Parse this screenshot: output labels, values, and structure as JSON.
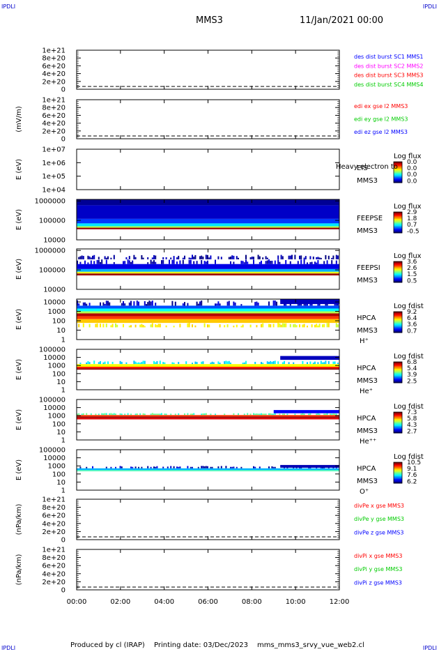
{
  "corner_tag": "IPDLI",
  "header": {
    "spacecraft": "MMS3",
    "date": "11/Jan/2021 00:00"
  },
  "footer": {
    "produced_by": "Produced by cl (IRAP)",
    "printing_date": "Printing date: 03/Dec/2023",
    "script_name": "mms_mms3_srvy_vue_web2.cl"
  },
  "colors": {
    "red": "#ff0000",
    "green": "#00cc00",
    "blue": "#0000ff",
    "magenta": "#ff00ff",
    "dashed": "#000000",
    "frame": "#000000"
  },
  "chart_data": [
    {
      "type": "line",
      "ylabel": "",
      "ytick_labels": [
        "1e+21",
        "8e+20",
        "6e+20",
        "4e+20",
        "2e+20",
        "0"
      ],
      "ytick_values": [
        1e+21,
        8e+20,
        6e+20,
        4e+20,
        2e+20,
        0
      ],
      "ylim": [
        0,
        1e+21
      ],
      "zero_dashed": true,
      "series": [
        {
          "name": "des dist burst SC1 MMS1",
          "color": "#0000ff",
          "values": []
        },
        {
          "name": "des dist burst SC2 MMS2",
          "color": "#ff00ff",
          "values": []
        },
        {
          "name": "des dist burst SC3 MMS3",
          "color": "#ff0000",
          "values": []
        },
        {
          "name": "des dist burst SC4 MMS4",
          "color": "#00cc00",
          "values": []
        }
      ]
    },
    {
      "type": "line",
      "ylabel": "(mV/m)",
      "ytick_labels": [
        "1e+21",
        "8e+20",
        "6e+20",
        "4e+20",
        "2e+20",
        "0"
      ],
      "ytick_values": [
        1e+21,
        8e+20,
        6e+20,
        4e+20,
        2e+20,
        0
      ],
      "ylim": [
        0,
        1e+21
      ],
      "zero_dashed": true,
      "series": [
        {
          "name": "edi ex gse l2 MMS3",
          "color": "#ff0000",
          "values": []
        },
        {
          "name": "edi ey gse l2 MMS3",
          "color": "#00cc00",
          "values": []
        },
        {
          "name": "edi ez gse l2 MMS3",
          "color": "#0000ff",
          "values": []
        }
      ]
    },
    {
      "type": "heatmap",
      "ylabel": "E (eV)",
      "ytick_labels": [
        "1e+07",
        "1e+06",
        "1e+05",
        "1e+04"
      ],
      "ytick_values": [
        10000000.0,
        1000000.0,
        100000.0,
        10000.0
      ],
      "ylim": [
        10000.0,
        10000000.0
      ],
      "yscale": "log",
      "instrument": [
        "EIS",
        "MMS3"
      ],
      "overlay_text": "Heavy electron to",
      "colorbar_title": "Log flux",
      "colorbar_labels": [
        "0.0",
        "0.0",
        "0.0",
        "0.0"
      ],
      "bands": []
    },
    {
      "type": "heatmap",
      "ylabel": "E (eV)",
      "ytick_labels": [
        "1000000",
        "100000",
        "10000"
      ],
      "ytick_values": [
        1000000.0,
        100000.0,
        10000.0
      ],
      "ylim": [
        10000.0,
        1200000.0
      ],
      "yscale": "log",
      "instrument": [
        "FEEPSE",
        "MMS3"
      ],
      "colorbar_title": "Log flux",
      "colorbar_labels": [
        "2.9",
        "1.8",
        "0.7",
        "-0.5"
      ],
      "bands": [
        {
          "y": [
            600000.0,
            1200000.0
          ],
          "level": 0.02,
          "x": [
            0,
            12
          ]
        },
        {
          "y": [
            120000.0,
            600000.0
          ],
          "level": 0.07,
          "x": [
            0,
            12
          ]
        },
        {
          "y": [
            70000.0,
            120000.0
          ],
          "level": 0.18,
          "x": [
            0,
            12
          ]
        },
        {
          "y": [
            50000.0,
            70000.0
          ],
          "level": 0.35,
          "x": [
            0,
            12
          ]
        },
        {
          "y": [
            42000.0,
            50000.0
          ],
          "level": 0.55,
          "x": [
            0,
            12
          ]
        },
        {
          "y": [
            35000.0,
            42000.0
          ],
          "level": 0.98,
          "x": [
            0,
            12
          ]
        }
      ]
    },
    {
      "type": "heatmap",
      "ylabel": "E (eV)",
      "ytick_labels": [
        "1000000",
        "100000",
        "10000"
      ],
      "ytick_values": [
        1000000.0,
        100000.0,
        10000.0
      ],
      "ylim": [
        10000.0,
        1200000.0
      ],
      "yscale": "log",
      "instrument": [
        "FEEPSI",
        "MMS3"
      ],
      "colorbar_title": "Log flux",
      "colorbar_labels": [
        "3.6",
        "2.6",
        "1.5",
        "0.5"
      ],
      "bands": [
        {
          "y": [
            350000.0,
            600000.0
          ],
          "level": 0.03,
          "x": [
            0,
            12
          ],
          "sparse": true
        },
        {
          "y": [
            200000.0,
            350000.0
          ],
          "level": 0.06,
          "x": [
            0,
            12
          ],
          "sparse": true
        },
        {
          "y": [
            110000.0,
            200000.0
          ],
          "level": 0.1,
          "x": [
            0,
            12
          ]
        },
        {
          "y": [
            80000.0,
            110000.0
          ],
          "level": 0.3,
          "x": [
            0,
            12
          ]
        },
        {
          "y": [
            65000.0,
            80000.0
          ],
          "level": 0.6,
          "x": [
            0,
            12
          ]
        },
        {
          "y": [
            52000.0,
            65000.0
          ],
          "level": 0.97,
          "x": [
            0,
            12
          ]
        }
      ]
    },
    {
      "type": "heatmap",
      "ylabel": "E (eV)",
      "ytick_labels": [
        "10000",
        "1000",
        "100",
        "10",
        "1"
      ],
      "ytick_values": [
        10000.0,
        1000.0,
        100.0,
        10.0,
        1
      ],
      "ylim": [
        1,
        20000.0
      ],
      "yscale": "log",
      "instrument": [
        "HPCA",
        "MMS3"
      ],
      "species": "H⁺",
      "colorbar_title": "Log fdist",
      "colorbar_labels": [
        "9.2",
        "6.4",
        "3.6",
        "0.7"
      ],
      "bands": [
        {
          "y": [
            4000,
            15000
          ],
          "level": 0.05,
          "x": [
            0,
            12
          ],
          "sparse": true
        },
        {
          "y": [
            2000,
            4000
          ],
          "level": 0.2,
          "x": [
            0,
            12
          ]
        },
        {
          "y": [
            1000,
            2000
          ],
          "level": 0.38,
          "x": [
            0,
            12
          ]
        },
        {
          "y": [
            600,
            1000
          ],
          "level": 0.55,
          "x": [
            0,
            12
          ]
        },
        {
          "y": [
            300,
            600
          ],
          "level": 0.95,
          "x": [
            0,
            12
          ]
        },
        {
          "y": [
            150,
            300
          ],
          "level": 0.82,
          "x": [
            0,
            12
          ]
        },
        {
          "y": [
            60,
            150
          ],
          "level": 0.68,
          "x": [
            0,
            12
          ]
        },
        {
          "y": [
            20,
            60
          ],
          "level": 0.62,
          "x": [
            0,
            12
          ],
          "sparse": true
        },
        {
          "y": [
            6000,
            20000
          ],
          "level": 0.06,
          "x": [
            9.3,
            12
          ]
        }
      ]
    },
    {
      "type": "heatmap",
      "ylabel": "E (eV)",
      "ytick_labels": [
        "100000",
        "10000",
        "1000",
        "100",
        "10",
        "1"
      ],
      "ytick_values": [
        100000.0,
        10000.0,
        1000.0,
        100.0,
        10.0,
        1
      ],
      "ylim": [
        1,
        100000.0
      ],
      "yscale": "log",
      "instrument": [
        "HPCA",
        "MMS3"
      ],
      "species": "He⁺",
      "colorbar_title": "Log fdist",
      "colorbar_labels": [
        "6.8",
        "5.4",
        "3.9",
        "2.5"
      ],
      "bands": [
        {
          "y": [
            1500,
            4000
          ],
          "level": 0.35,
          "x": [
            0,
            12
          ],
          "sparse": true
        },
        {
          "y": [
            700,
            1500
          ],
          "level": 0.62,
          "x": [
            0,
            12
          ]
        },
        {
          "y": [
            450,
            700
          ],
          "level": 0.85,
          "x": [
            0,
            12
          ]
        },
        {
          "y": [
            300,
            450
          ],
          "level": 0.98,
          "x": [
            0,
            12
          ]
        },
        {
          "y": [
            5000,
            15000
          ],
          "level": 0.06,
          "x": [
            9.3,
            12
          ]
        }
      ]
    },
    {
      "type": "heatmap",
      "ylabel": "E (eV)",
      "ytick_labels": [
        "100000",
        "10000",
        "1000",
        "100",
        "10",
        "1"
      ],
      "ytick_values": [
        100000.0,
        10000.0,
        1000.0,
        100.0,
        10.0,
        1
      ],
      "ylim": [
        1,
        100000.0
      ],
      "yscale": "log",
      "instrument": [
        "HPCA",
        "MMS3"
      ],
      "species": "He⁺⁺",
      "colorbar_title": "Log fdist",
      "colorbar_labels": [
        "7.3",
        "5.8",
        "4.3",
        "2.7"
      ],
      "bands": [
        {
          "y": [
            1200,
            2200
          ],
          "level": 0.45,
          "x": [
            0,
            12
          ],
          "sparse": true
        },
        {
          "y": [
            800,
            1200
          ],
          "level": 0.82,
          "x": [
            0,
            12
          ]
        },
        {
          "y": [
            500,
            800
          ],
          "level": 0.96,
          "x": [
            0,
            12
          ]
        },
        {
          "y": [
            350,
            500
          ],
          "level": 0.9,
          "x": [
            0,
            12
          ]
        },
        {
          "y": [
            2000,
            5000
          ],
          "level": 0.12,
          "x": [
            9.0,
            12
          ]
        }
      ]
    },
    {
      "type": "heatmap",
      "ylabel": "E (eV)",
      "ytick_labels": [
        "100000",
        "10000",
        "1000",
        "100",
        "10",
        "1"
      ],
      "ytick_values": [
        100000.0,
        10000.0,
        1000.0,
        100.0,
        10.0,
        1
      ],
      "ylim": [
        1,
        100000.0
      ],
      "yscale": "log",
      "instrument": [
        "HPCA",
        "MMS3"
      ],
      "species": "O⁺",
      "colorbar_title": "Log fdist",
      "colorbar_labels": [
        "10.5",
        "9.1",
        "7.6",
        "6.2"
      ],
      "bands": [
        {
          "y": [
            500,
            1000
          ],
          "level": 0.05,
          "x": [
            0,
            12
          ],
          "sparse": true
        },
        {
          "y": [
            300,
            500
          ],
          "level": 0.3,
          "x": [
            0,
            12
          ]
        },
        {
          "y": [
            220,
            300
          ],
          "level": 0.45,
          "x": [
            0,
            12
          ]
        },
        {
          "y": [
            600,
            1300
          ],
          "level": 0.05,
          "x": [
            9.3,
            12
          ]
        }
      ]
    },
    {
      "type": "line",
      "ylabel": "(nPa/km)",
      "ytick_labels": [
        "1e+21",
        "8e+20",
        "6e+20",
        "4e+20",
        "2e+20",
        "0"
      ],
      "ytick_values": [
        1e+21,
        8e+20,
        6e+20,
        4e+20,
        2e+20,
        0
      ],
      "ylim": [
        0,
        1e+21
      ],
      "zero_dashed": true,
      "series": [
        {
          "name": "divPe x gse MMS3",
          "color": "#ff0000",
          "values": []
        },
        {
          "name": "divPe y gse MMS3",
          "color": "#00cc00",
          "values": []
        },
        {
          "name": "divPe z gse MMS3",
          "color": "#0000ff",
          "values": []
        }
      ]
    },
    {
      "type": "line",
      "ylabel": "(nPa/km)",
      "ytick_labels": [
        "1e+21",
        "8e+20",
        "6e+20",
        "4e+20",
        "2e+20",
        "0"
      ],
      "ytick_values": [
        1e+21,
        8e+20,
        6e+20,
        4e+20,
        2e+20,
        0
      ],
      "ylim": [
        0,
        1e+21
      ],
      "zero_dashed": true,
      "series": [
        {
          "name": "divPi x gse MMS3",
          "color": "#ff0000",
          "values": []
        },
        {
          "name": "divPi y gse MMS3",
          "color": "#00cc00",
          "values": []
        },
        {
          "name": "divPi z gse MMS3",
          "color": "#0000ff",
          "values": []
        }
      ]
    }
  ],
  "x_axis": {
    "tick_labels": [
      "00:00",
      "02:00",
      "04:00",
      "06:00",
      "08:00",
      "10:00",
      "12:00"
    ],
    "tick_values": [
      0,
      2,
      4,
      6,
      8,
      10,
      12
    ],
    "xlim": [
      0,
      12
    ]
  }
}
